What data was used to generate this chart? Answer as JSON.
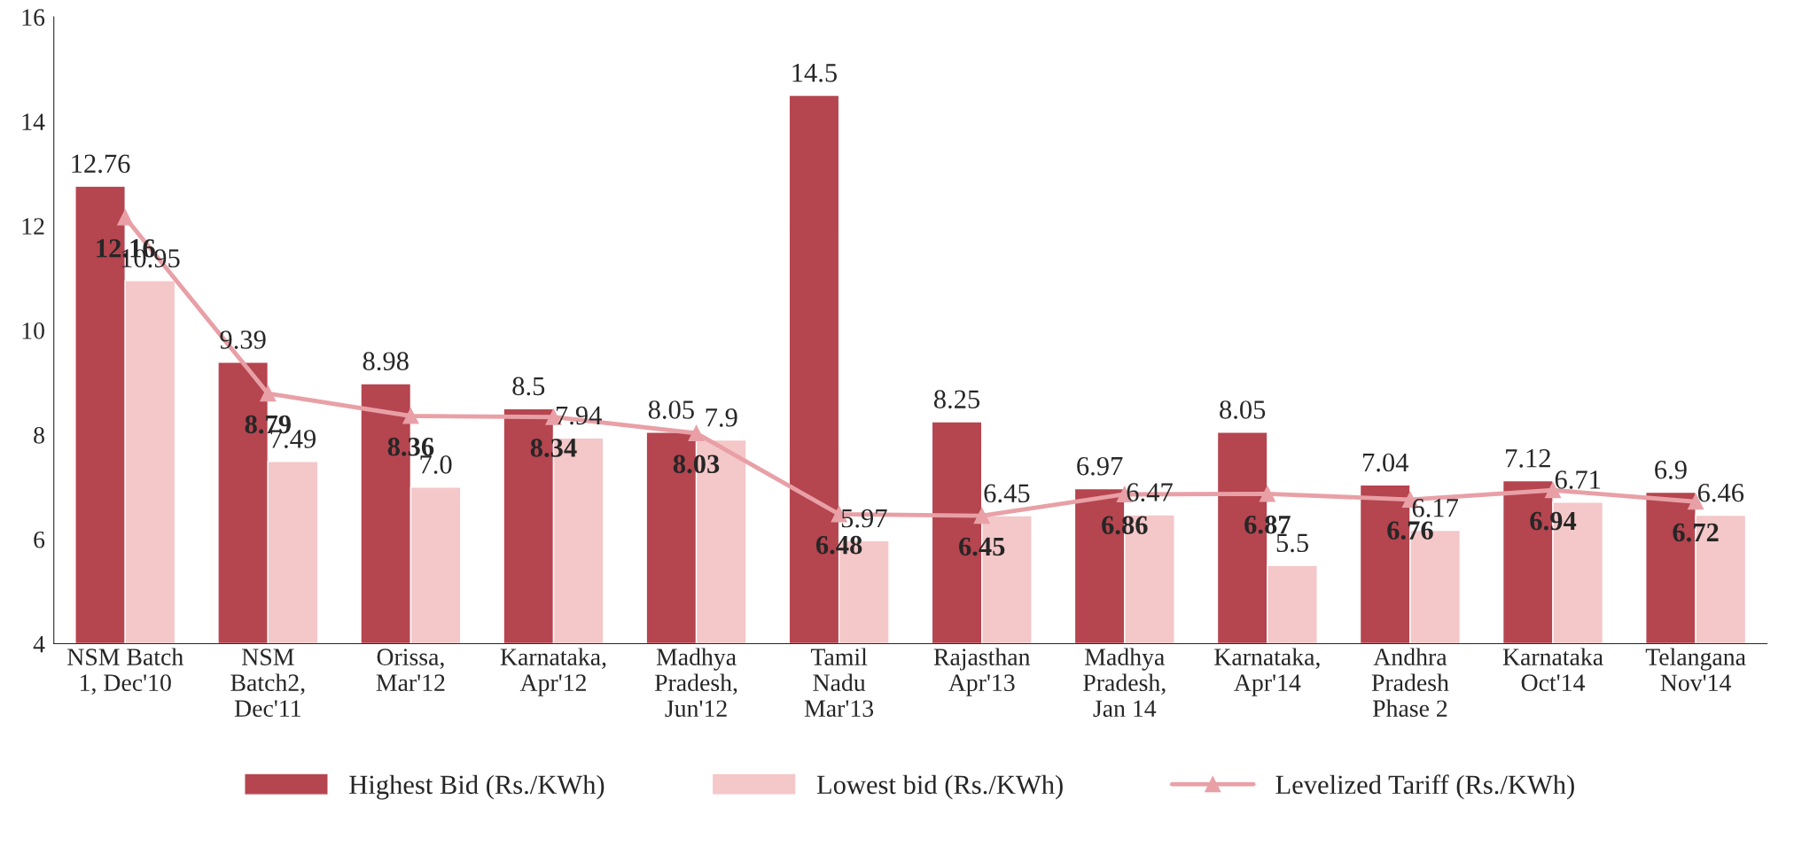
{
  "chart_data": {
    "type": "bar",
    "categories": [
      "NSM Batch\n1, Dec'10",
      "NSM\nBatch2,\nDec'11",
      "Orissa,\nMar'12",
      "Karnataka,\nApr'12",
      "Madhya\nPradesh,\nJun'12",
      "Tamil\nNadu\nMar'13",
      "Rajasthan\nApr'13",
      "Madhya\nPradesh,\nJan 14",
      "Karnataka,\nApr'14",
      "Andhra\nPradesh\nPhase 2",
      "Karnataka\nOct'14",
      "Telangana\nNov'14"
    ],
    "series": [
      {
        "name": "Highest Bid (Rs./KWh)",
        "color": "#b5454f",
        "values": [
          12.76,
          9.39,
          8.98,
          8.5,
          8.05,
          14.5,
          8.25,
          6.97,
          8.05,
          7.04,
          7.12,
          6.9
        ],
        "value_labels": [
          "12.76",
          "9.39",
          "8.98",
          "8.5",
          "8.05",
          "14.5",
          "8.25",
          "6.97",
          "8.05",
          "7.04",
          "7.12",
          "6.9"
        ]
      },
      {
        "name": "Lowest bid (Rs./KWh)",
        "color": "#f4c7c8",
        "values": [
          10.95,
          7.49,
          7.0,
          7.94,
          7.9,
          5.97,
          6.45,
          6.47,
          5.5,
          6.17,
          6.71,
          6.46
        ],
        "value_labels": [
          "10.95",
          "7.49",
          "7.0",
          "7.94",
          "7.9",
          "5.97",
          "6.45",
          "6.47",
          "5.5",
          "6.17",
          "6.71",
          "6.46"
        ]
      },
      {
        "name": "Levelized Tariff (Rs./KWh)",
        "type": "line",
        "color": "#e8a0a6",
        "marker": "triangle",
        "values": [
          12.16,
          8.79,
          8.36,
          8.34,
          8.03,
          6.48,
          6.45,
          6.86,
          6.87,
          6.76,
          6.94,
          6.72
        ],
        "value_labels": [
          "12.16",
          "8.79",
          "8.36",
          "8.34",
          "8.03",
          "6.48",
          "6.45",
          "6.86",
          "6.87",
          "6.76",
          "6.94",
          "6.72"
        ]
      }
    ],
    "ylim": [
      4,
      16
    ],
    "yticks": [
      4,
      6,
      8,
      10,
      12,
      14,
      16
    ],
    "grid": false,
    "legend": "bottom"
  }
}
